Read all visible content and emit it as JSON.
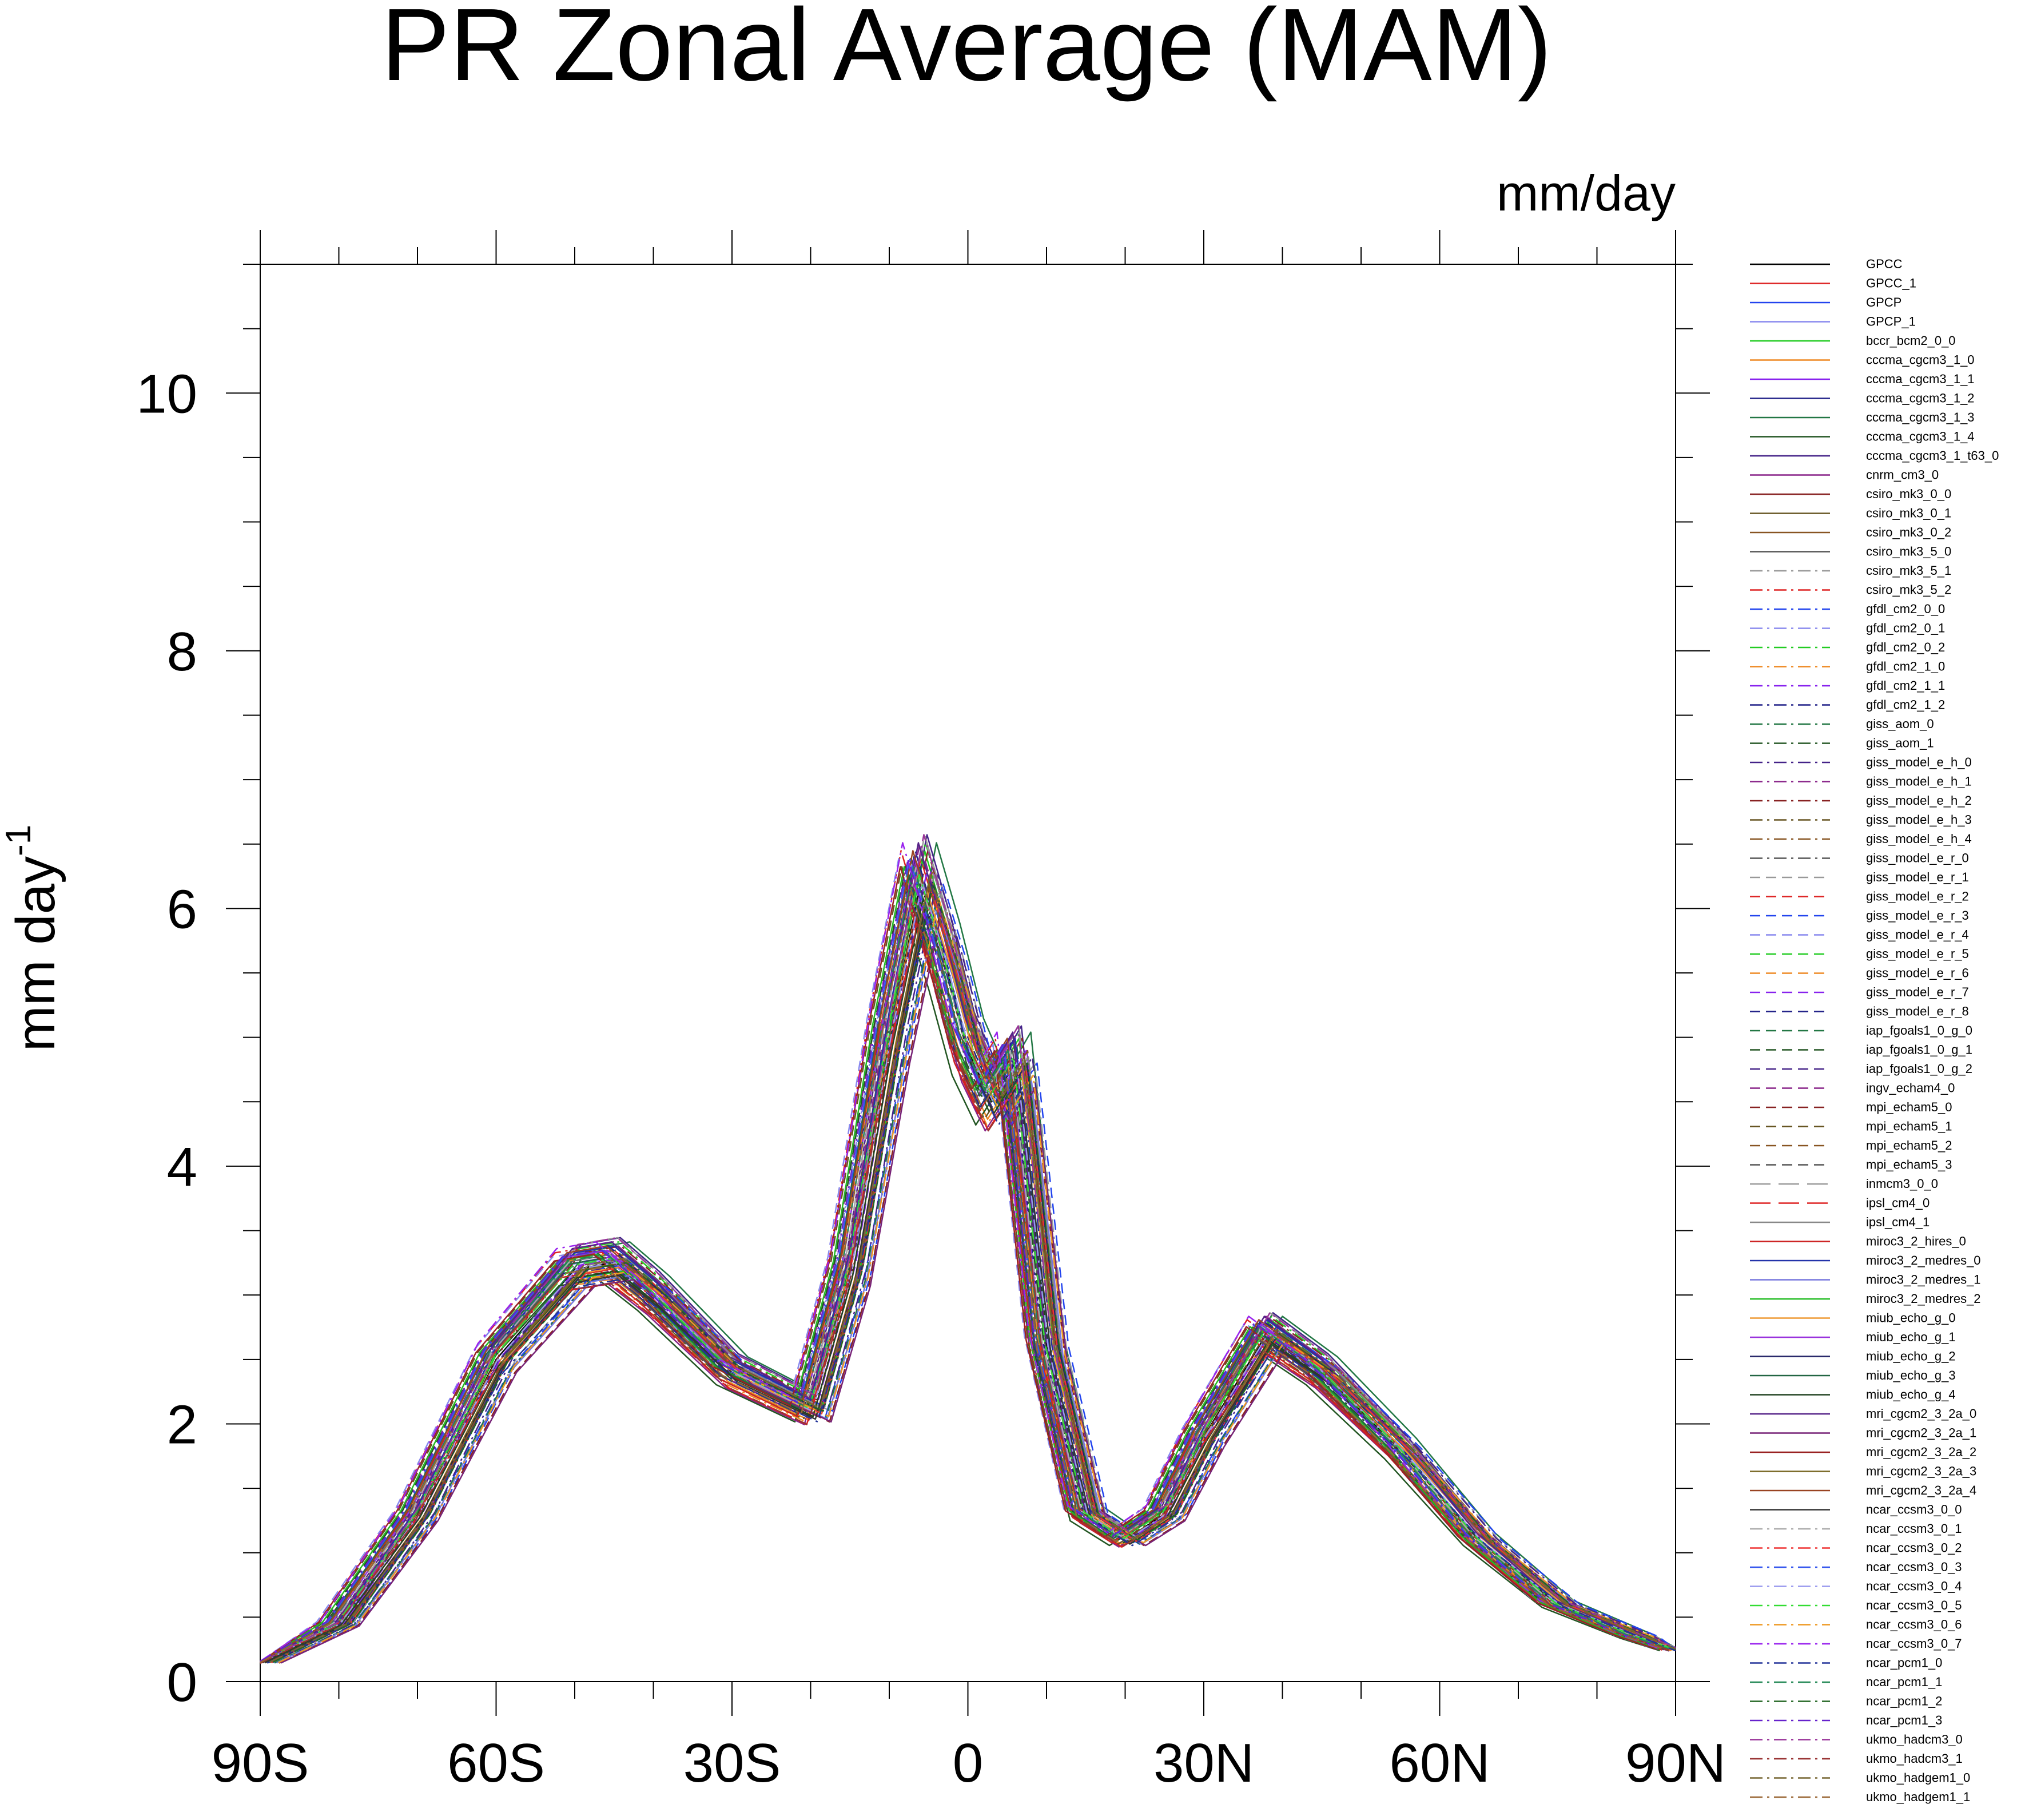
{
  "chart_data": {
    "type": "line",
    "title": "PR Zonal Average (MAM)",
    "units_label": "mm/day",
    "ylabel": "mm day",
    "ylabel_superscript": "-1",
    "xlabel": "",
    "xlim": [
      -90,
      90
    ],
    "ylim": [
      0,
      11
    ],
    "x_ticks": [
      -90,
      -60,
      -30,
      0,
      30,
      60,
      90
    ],
    "x_tick_labels": [
      "90S",
      "60S",
      "30S",
      "0",
      "30N",
      "60N",
      "90N"
    ],
    "y_ticks": [
      0,
      2,
      4,
      6,
      8,
      10
    ],
    "y_tick_labels": [
      "0",
      "2",
      "4",
      "6",
      "8",
      "10"
    ],
    "legend_position": "right",
    "x": [
      -90,
      -80,
      -70,
      -60,
      -50,
      -45,
      -40,
      -30,
      -20,
      -15,
      -10,
      -6,
      -3,
      0,
      3,
      6,
      10,
      15,
      20,
      25,
      30,
      38,
      45,
      55,
      65,
      75,
      85,
      90
    ],
    "baseline_values": [
      0.15,
      0.45,
      1.3,
      2.5,
      3.2,
      3.25,
      3.0,
      2.4,
      2.1,
      3.2,
      5.0,
      6.2,
      5.6,
      4.9,
      4.5,
      4.8,
      2.6,
      1.3,
      1.1,
      1.3,
      1.9,
      2.7,
      2.4,
      1.8,
      1.1,
      0.6,
      0.35,
      0.25
    ],
    "series": [
      {
        "name": "GPCC",
        "color": "#000000",
        "dash": "solid",
        "sx": 0.0,
        "sy": 1.0
      },
      {
        "name": "GPCC_1",
        "color": "#dd2222",
        "dash": "solid",
        "sx": 0.0,
        "sy": 1.03
      },
      {
        "name": "GPCP",
        "color": "#2244ee",
        "dash": "solid",
        "sx": 1.0,
        "sy": 0.98
      },
      {
        "name": "GPCP_1",
        "color": "#8888ee",
        "dash": "solid",
        "sx": -1.0,
        "sy": 1.01
      },
      {
        "name": "bccr_bcm2_0_0",
        "color": "#22cc22",
        "dash": "solid",
        "sx": 0.5,
        "sy": 1.04
      },
      {
        "name": "cccma_cgcm3_1_0",
        "color": "#ee8822",
        "dash": "solid",
        "sx": -0.5,
        "sy": 0.97
      },
      {
        "name": "cccma_cgcm3_1_1",
        "color": "#8822ee",
        "dash": "solid",
        "sx": 1.5,
        "sy": 1.02
      },
      {
        "name": "cccma_cgcm3_1_2",
        "color": "#222288",
        "dash": "solid",
        "sx": -1.5,
        "sy": 0.99
      },
      {
        "name": "cccma_cgcm3_1_3",
        "color": "#227744",
        "dash": "solid",
        "sx": 2.0,
        "sy": 1.05
      },
      {
        "name": "cccma_cgcm3_1_4",
        "color": "#225522",
        "dash": "solid",
        "sx": -2.0,
        "sy": 0.96
      },
      {
        "name": "cccma_cgcm3_1_t63_0",
        "color": "#442288",
        "dash": "solid",
        "sx": 0.8,
        "sy": 1.06
      },
      {
        "name": "cnrm_cm3_0",
        "color": "#882288",
        "dash": "solid",
        "sx": -0.8,
        "sy": 0.95
      },
      {
        "name": "csiro_mk3_0_0",
        "color": "#882222",
        "dash": "solid",
        "sx": 1.2,
        "sy": 1.0
      },
      {
        "name": "csiro_mk3_0_1",
        "color": "#665522",
        "dash": "solid",
        "sx": -1.2,
        "sy": 1.03
      },
      {
        "name": "csiro_mk3_0_2",
        "color": "#885522",
        "dash": "solid",
        "sx": 0.3,
        "sy": 0.98
      },
      {
        "name": "csiro_mk3_5_0",
        "color": "#555555",
        "dash": "solid",
        "sx": -0.3,
        "sy": 1.02
      },
      {
        "name": "csiro_mk3_5_1",
        "color": "#999999",
        "dash": "dashdot",
        "sx": 2.5,
        "sy": 1.0
      },
      {
        "name": "csiro_mk3_5_2",
        "color": "#dd2222",
        "dash": "dashdot",
        "sx": -2.5,
        "sy": 1.04
      },
      {
        "name": "gfdl_cm2_0_0",
        "color": "#2244ee",
        "dash": "dashdot",
        "sx": 1.8,
        "sy": 0.97
      },
      {
        "name": "gfdl_cm2_0_1",
        "color": "#8888ee",
        "dash": "dashdot",
        "sx": -1.8,
        "sy": 1.01
      },
      {
        "name": "gfdl_cm2_0_2",
        "color": "#22cc22",
        "dash": "dashdot",
        "sx": 0.6,
        "sy": 1.05
      },
      {
        "name": "gfdl_cm2_1_0",
        "color": "#ee8822",
        "dash": "dashdot",
        "sx": -0.6,
        "sy": 0.96
      },
      {
        "name": "gfdl_cm2_1_1",
        "color": "#8822ee",
        "dash": "dashdot",
        "sx": 1.4,
        "sy": 1.02
      },
      {
        "name": "gfdl_cm2_1_2",
        "color": "#222288",
        "dash": "dashdot",
        "sx": -1.4,
        "sy": 0.99
      },
      {
        "name": "giss_aom_0",
        "color": "#227744",
        "dash": "dashdot",
        "sx": 0.2,
        "sy": 1.03
      },
      {
        "name": "giss_aom_1",
        "color": "#225522",
        "dash": "dashdot",
        "sx": -0.2,
        "sy": 0.98
      },
      {
        "name": "giss_model_e_h_0",
        "color": "#442288",
        "dash": "dashdot",
        "sx": 2.2,
        "sy": 1.01
      },
      {
        "name": "giss_model_e_h_1",
        "color": "#882288",
        "dash": "dashdot",
        "sx": -2.2,
        "sy": 1.0
      },
      {
        "name": "giss_model_e_h_2",
        "color": "#882222",
        "dash": "dashdot",
        "sx": 0.9,
        "sy": 1.04
      },
      {
        "name": "giss_model_e_h_3",
        "color": "#665522",
        "dash": "dashdot",
        "sx": -0.9,
        "sy": 0.97
      },
      {
        "name": "giss_model_e_h_4",
        "color": "#885522",
        "dash": "dashdot",
        "sx": 1.6,
        "sy": 1.02
      },
      {
        "name": "giss_model_e_r_0",
        "color": "#555555",
        "dash": "dashdot",
        "sx": -1.6,
        "sy": 0.99
      },
      {
        "name": "giss_model_e_r_1",
        "color": "#999999",
        "dash": "dash",
        "sx": 0.4,
        "sy": 1.06
      },
      {
        "name": "giss_model_e_r_2",
        "color": "#dd2222",
        "dash": "dash",
        "sx": -0.4,
        "sy": 0.95
      },
      {
        "name": "giss_model_e_r_3",
        "color": "#2244ee",
        "dash": "dash",
        "sx": 2.8,
        "sy": 1.0
      },
      {
        "name": "giss_model_e_r_4",
        "color": "#8888ee",
        "dash": "dash",
        "sx": -2.8,
        "sy": 1.03
      },
      {
        "name": "giss_model_e_r_5",
        "color": "#22cc22",
        "dash": "dash",
        "sx": 1.1,
        "sy": 0.98
      },
      {
        "name": "giss_model_e_r_6",
        "color": "#ee8822",
        "dash": "dash",
        "sx": -1.1,
        "sy": 1.02
      },
      {
        "name": "giss_model_e_r_7",
        "color": "#8822ee",
        "dash": "dash",
        "sx": 0.7,
        "sy": 1.01
      },
      {
        "name": "giss_model_e_r_8",
        "color": "#222288",
        "dash": "dash",
        "sx": -0.7,
        "sy": 1.04
      },
      {
        "name": "iap_fgoals1_0_g_0",
        "color": "#227744",
        "dash": "dash",
        "sx": 1.9,
        "sy": 0.97
      },
      {
        "name": "iap_fgoals1_0_g_1",
        "color": "#225522",
        "dash": "dash",
        "sx": -1.9,
        "sy": 1.02
      },
      {
        "name": "iap_fgoals1_0_g_2",
        "color": "#442288",
        "dash": "dash",
        "sx": 0.1,
        "sy": 0.99
      },
      {
        "name": "ingv_echam4_0",
        "color": "#882288",
        "dash": "dash",
        "sx": -0.1,
        "sy": 1.05
      },
      {
        "name": "mpi_echam5_0",
        "color": "#882222",
        "dash": "dash",
        "sx": 2.4,
        "sy": 0.96
      },
      {
        "name": "mpi_echam5_1",
        "color": "#665522",
        "dash": "dash",
        "sx": -2.4,
        "sy": 1.02
      },
      {
        "name": "mpi_echam5_2",
        "color": "#885522",
        "dash": "dash",
        "sx": 1.3,
        "sy": 1.0
      },
      {
        "name": "mpi_echam5_3",
        "color": "#555555",
        "dash": "dash",
        "sx": -1.3,
        "sy": 1.03
      },
      {
        "name": "inmcm3_0_0",
        "color": "#999999",
        "dash": "longdash",
        "sx": 0.5,
        "sy": 1.06
      },
      {
        "name": "ipsl_cm4_0",
        "color": "#dd2222",
        "dash": "longdash",
        "sx": -0.5,
        "sy": 0.95
      },
      {
        "name": "ipsl_cm4_1",
        "color": "#888888",
        "dash": "solid",
        "sx": 1.7,
        "sy": 1.01
      },
      {
        "name": "miroc3_2_hires_0",
        "color": "#cc2222",
        "dash": "solid",
        "sx": -1.7,
        "sy": 0.98
      },
      {
        "name": "miroc3_2_medres_0",
        "color": "#2233aa",
        "dash": "solid",
        "sx": 0.0,
        "sy": 1.04
      },
      {
        "name": "miroc3_2_medres_1",
        "color": "#7777dd",
        "dash": "solid",
        "sx": 2.1,
        "sy": 0.97
      },
      {
        "name": "miroc3_2_medres_2",
        "color": "#22bb22",
        "dash": "solid",
        "sx": -2.1,
        "sy": 1.02
      },
      {
        "name": "miub_echo_g_0",
        "color": "#ee9933",
        "dash": "solid",
        "sx": 0.8,
        "sy": 0.99
      },
      {
        "name": "miub_echo_g_1",
        "color": "#9933dd",
        "dash": "solid",
        "sx": -0.8,
        "sy": 1.03
      },
      {
        "name": "miub_echo_g_2",
        "color": "#222266",
        "dash": "solid",
        "sx": 1.5,
        "sy": 1.0
      },
      {
        "name": "miub_echo_g_3",
        "color": "#226644",
        "dash": "solid",
        "sx": -1.5,
        "sy": 1.01
      },
      {
        "name": "miub_echo_g_4",
        "color": "#224422",
        "dash": "solid",
        "sx": 0.3,
        "sy": 0.98
      },
      {
        "name": "mri_cgcm2_3_2a_0",
        "color": "#552288",
        "dash": "solid",
        "sx": -0.3,
        "sy": 1.05
      },
      {
        "name": "mri_cgcm2_3_2a_1",
        "color": "#772277",
        "dash": "solid",
        "sx": 2.6,
        "sy": 0.96
      },
      {
        "name": "mri_cgcm2_3_2a_2",
        "color": "#992222",
        "dash": "solid",
        "sx": -2.6,
        "sy": 1.02
      },
      {
        "name": "mri_cgcm2_3_2a_3",
        "color": "#776622",
        "dash": "solid",
        "sx": 1.0,
        "sy": 1.0
      },
      {
        "name": "mri_cgcm2_3_2a_4",
        "color": "#994422",
        "dash": "solid",
        "sx": -1.0,
        "sy": 1.04
      },
      {
        "name": "ncar_ccsm3_0_0",
        "color": "#333333",
        "dash": "solid",
        "sx": 0.6,
        "sy": 0.97
      },
      {
        "name": "ncar_ccsm3_0_1",
        "color": "#aaaaaa",
        "dash": "dashdot",
        "sx": -0.6,
        "sy": 1.02
      },
      {
        "name": "ncar_ccsm3_0_2",
        "color": "#ee3333",
        "dash": "dashdot",
        "sx": 1.4,
        "sy": 0.99
      },
      {
        "name": "ncar_ccsm3_0_3",
        "color": "#3355ee",
        "dash": "dashdot",
        "sx": -1.4,
        "sy": 1.03
      },
      {
        "name": "ncar_ccsm3_0_4",
        "color": "#9999ee",
        "dash": "dashdot",
        "sx": 0.2,
        "sy": 1.0
      },
      {
        "name": "ncar_ccsm3_0_5",
        "color": "#33dd33",
        "dash": "dashdot",
        "sx": -0.2,
        "sy": 1.01
      },
      {
        "name": "ncar_ccsm3_0_6",
        "color": "#ee9922",
        "dash": "dashdot",
        "sx": 2.3,
        "sy": 0.98
      },
      {
        "name": "ncar_ccsm3_0_7",
        "color": "#9922ee",
        "dash": "dashdot",
        "sx": -2.3,
        "sy": 1.05
      },
      {
        "name": "ncar_pcm1_0",
        "color": "#223399",
        "dash": "dashdot",
        "sx": 0.9,
        "sy": 0.96
      },
      {
        "name": "ncar_pcm1_1",
        "color": "#228855",
        "dash": "dashdot",
        "sx": -0.9,
        "sy": 1.02
      },
      {
        "name": "ncar_pcm1_2",
        "color": "#226622",
        "dash": "dashdot",
        "sx": 1.6,
        "sy": 1.0
      },
      {
        "name": "ncar_pcm1_3",
        "color": "#6622cc",
        "dash": "dashdot",
        "sx": -1.6,
        "sy": 1.03
      },
      {
        "name": "ukmo_hadcm3_0",
        "color": "#993399",
        "dash": "dashdot",
        "sx": 0.4,
        "sy": 1.06
      },
      {
        "name": "ukmo_hadcm3_1",
        "color": "#993333",
        "dash": "dashdot",
        "sx": -0.4,
        "sy": 0.95
      },
      {
        "name": "ukmo_hadgem1_0",
        "color": "#776633",
        "dash": "dashdot",
        "sx": 1.2,
        "sy": 1.01
      },
      {
        "name": "ukmo_hadgem1_1",
        "color": "#996633",
        "dash": "dashdot",
        "sx": -1.2,
        "sy": 0.99
      }
    ]
  }
}
